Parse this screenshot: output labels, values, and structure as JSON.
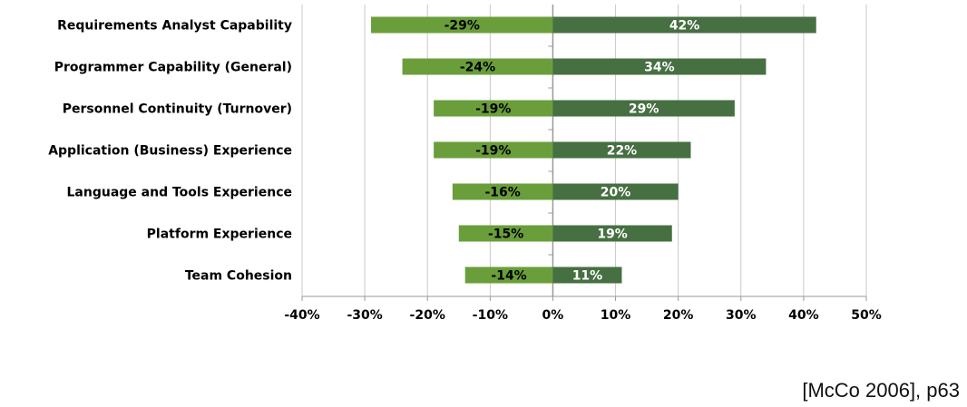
{
  "chart_data": {
    "type": "bar",
    "orientation": "horizontal",
    "categories": [
      "Requirements Analyst Capability",
      "Programmer Capability (General)",
      "Personnel Continuity (Turnover)",
      "Application (Business) Experience",
      "Language and Tools Experience",
      "Platform Experience",
      "Team Cohesion"
    ],
    "series": [
      {
        "values": [
          -29,
          -24,
          -19,
          -19,
          -16,
          -15,
          -14
        ],
        "labels": [
          "-29%",
          "-24%",
          "-19%",
          "-19%",
          "-16%",
          "-15%",
          "-14%"
        ],
        "color": "#6a9e3a",
        "label_color": "#000000"
      },
      {
        "values": [
          42,
          34,
          29,
          22,
          20,
          19,
          11
        ],
        "labels": [
          "42%",
          "34%",
          "29%",
          "22%",
          "20%",
          "19%",
          "11%"
        ],
        "color": "#466f42",
        "label_color": "#ffffff"
      }
    ],
    "xlim": [
      -40,
      50
    ],
    "xticks": [
      -40,
      -30,
      -20,
      -10,
      0,
      10,
      20,
      30,
      40,
      50
    ],
    "xtick_labels": [
      "-40%",
      "-30%",
      "-20%",
      "-10%",
      "0%",
      "10%",
      "20%",
      "30%",
      "40%",
      "50%"
    ],
    "grid": "vertical",
    "legend": "none"
  },
  "citation": "[McCo 2006], p63"
}
